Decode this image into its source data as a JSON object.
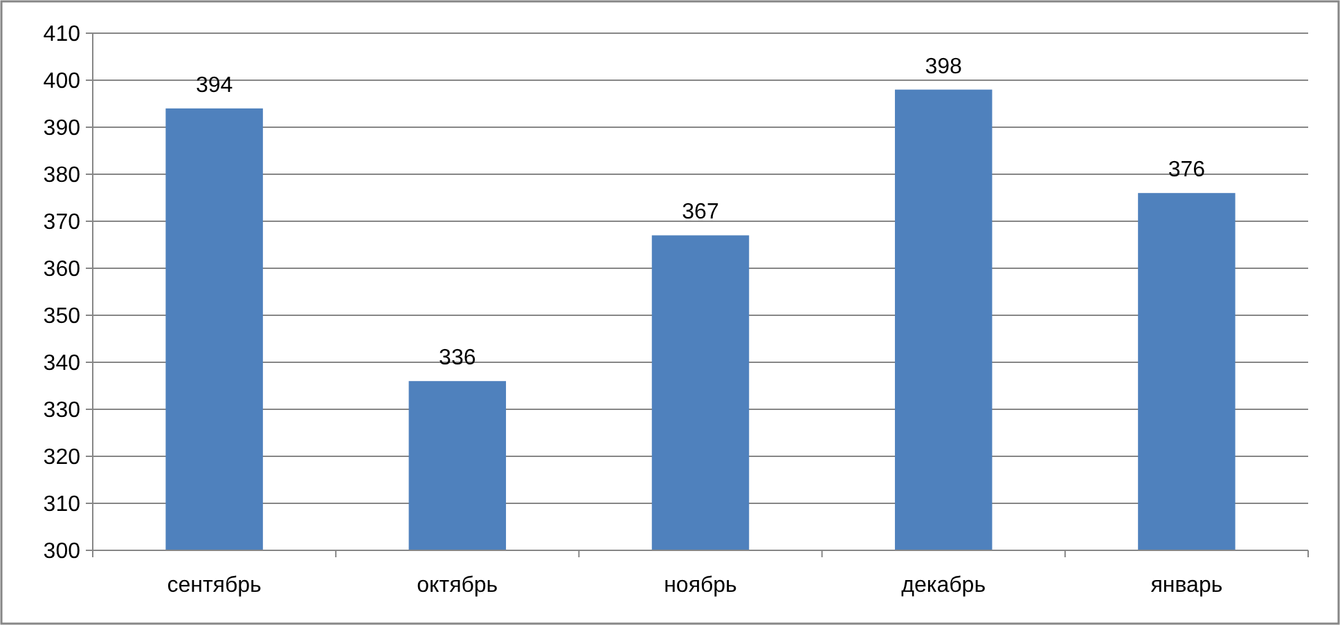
{
  "chart_data": {
    "type": "bar",
    "categories": [
      "сентябрь",
      "октябрь",
      "ноябрь",
      "декабрь",
      "январь"
    ],
    "values": [
      394,
      336,
      367,
      398,
      376
    ],
    "color": "#4f81bd",
    "ylim": [
      300,
      410
    ],
    "yticks": [
      300,
      310,
      320,
      330,
      340,
      350,
      360,
      370,
      380,
      390,
      400,
      410
    ],
    "grid": "y",
    "data_labels": true
  }
}
